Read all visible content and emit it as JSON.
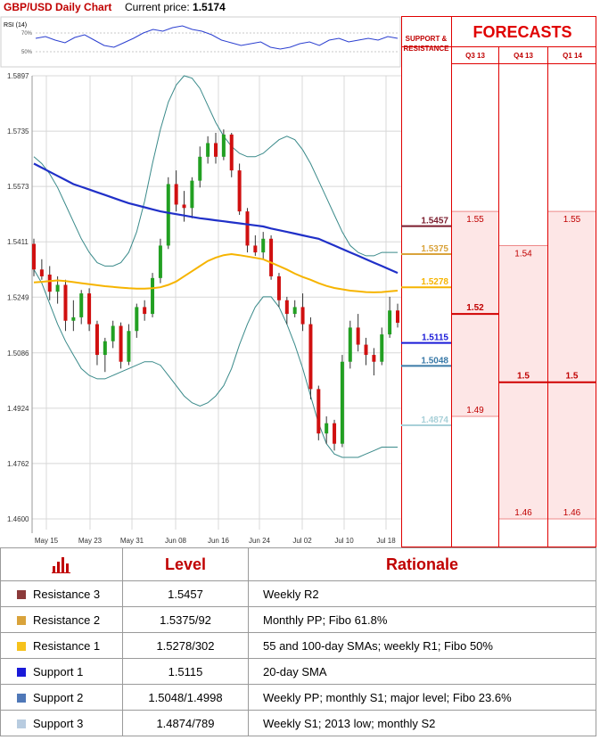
{
  "header": {
    "title": "GBP/USD Daily Chart",
    "price_label": "Current price:",
    "price_value": "1.5174"
  },
  "forecast_panel": {
    "title": "FORECASTS",
    "sr_title_line1": "SUPPORT &",
    "sr_title_line2": "RESISTANCE",
    "quarters": [
      "Q3 13",
      "Q4 13",
      "Q1 14"
    ]
  },
  "chart_data": [
    {
      "type": "line",
      "title": "RSI (14)",
      "y_ticks": [
        "70%",
        "50%"
      ],
      "ylim": [
        30,
        80
      ],
      "series": [
        {
          "values": [
            60,
            62,
            58,
            55,
            61,
            64,
            58,
            52,
            50,
            55,
            60,
            66,
            70,
            68,
            72,
            74,
            70,
            68,
            64,
            58,
            55,
            52,
            54,
            56,
            50,
            48,
            50,
            54,
            56,
            52,
            58,
            60,
            56,
            58,
            60,
            58,
            62,
            60
          ]
        }
      ]
    },
    {
      "type": "candlestick",
      "ylim": [
        1.46,
        1.5897
      ],
      "y_ticks": [
        "1.5897",
        "1.5735",
        "1.5573",
        "1.5411",
        "1.5249",
        "1.5086",
        "1.4924",
        "1.4762",
        "1.4600"
      ],
      "x_ticks": [
        "May 15",
        "May 23",
        "May 31",
        "Jun 08",
        "Jun 16",
        "Jun 24",
        "Jul 02",
        "Jul 10",
        "Jul 18"
      ],
      "colors": {
        "up": "#22a022",
        "down": "#d01010",
        "sma200": "#2030c8",
        "sma": "#f6b400",
        "band": "#3a8a8a"
      },
      "candles": [
        [
          1.5405,
          1.542,
          1.531,
          1.533
        ],
        [
          1.533,
          1.536,
          1.53,
          1.531
        ],
        [
          1.5315,
          1.534,
          1.524,
          1.5265
        ],
        [
          1.5265,
          1.531,
          1.523,
          1.5285
        ],
        [
          1.5285,
          1.53,
          1.515,
          1.518
        ],
        [
          1.518,
          1.524,
          1.515,
          1.519
        ],
        [
          1.519,
          1.527,
          1.517,
          1.526
        ],
        [
          1.526,
          1.5275,
          1.515,
          1.517
        ],
        [
          1.517,
          1.518,
          1.505,
          1.508
        ],
        [
          1.508,
          1.513,
          1.503,
          1.512
        ],
        [
          1.512,
          1.518,
          1.51,
          1.5165
        ],
        [
          1.5165,
          1.5175,
          1.504,
          1.506
        ],
        [
          1.506,
          1.517,
          1.505,
          1.515
        ],
        [
          1.515,
          1.523,
          1.513,
          1.522
        ],
        [
          1.522,
          1.524,
          1.518,
          1.52
        ],
        [
          1.52,
          1.532,
          1.519,
          1.5305
        ],
        [
          1.5305,
          1.542,
          1.529,
          1.54
        ],
        [
          1.54,
          1.56,
          1.539,
          1.558
        ],
        [
          1.558,
          1.562,
          1.55,
          1.552
        ],
        [
          1.552,
          1.556,
          1.547,
          1.551
        ],
        [
          1.551,
          1.56,
          1.548,
          1.559
        ],
        [
          1.559,
          1.569,
          1.557,
          1.566
        ],
        [
          1.566,
          1.572,
          1.564,
          1.57
        ],
        [
          1.57,
          1.573,
          1.564,
          1.566
        ],
        [
          1.566,
          1.574,
          1.565,
          1.5725
        ],
        [
          1.5725,
          1.573,
          1.56,
          1.562
        ],
        [
          1.562,
          1.564,
          1.549,
          1.55
        ],
        [
          1.55,
          1.551,
          1.538,
          1.54
        ],
        [
          1.54,
          1.543,
          1.537,
          1.538
        ],
        [
          1.538,
          1.544,
          1.536,
          1.542
        ],
        [
          1.542,
          1.543,
          1.53,
          1.531
        ],
        [
          1.531,
          1.532,
          1.522,
          1.524
        ],
        [
          1.524,
          1.525,
          1.517,
          1.52
        ],
        [
          1.52,
          1.524,
          1.519,
          1.522
        ],
        [
          1.522,
          1.526,
          1.515,
          1.517
        ],
        [
          1.517,
          1.519,
          1.495,
          1.498
        ],
        [
          1.498,
          1.499,
          1.483,
          1.485
        ],
        [
          1.485,
          1.49,
          1.482,
          1.488
        ],
        [
          1.488,
          1.489,
          1.48,
          1.482
        ],
        [
          1.482,
          1.508,
          1.481,
          1.506
        ],
        [
          1.506,
          1.518,
          1.504,
          1.516
        ],
        [
          1.516,
          1.52,
          1.509,
          1.511
        ],
        [
          1.511,
          1.513,
          1.505,
          1.508
        ],
        [
          1.508,
          1.51,
          1.502,
          1.506
        ],
        [
          1.506,
          1.516,
          1.505,
          1.514
        ],
        [
          1.514,
          1.525,
          1.513,
          1.521
        ],
        [
          1.521,
          1.523,
          1.516,
          1.5174
        ]
      ],
      "sma200": [
        1.564,
        1.5628,
        1.5616,
        1.5604,
        1.5592,
        1.558,
        1.5572,
        1.5564,
        1.5556,
        1.5548,
        1.554,
        1.5532,
        1.5524,
        1.5518,
        1.5512,
        1.5506,
        1.55,
        1.5496,
        1.5492,
        1.5488,
        1.5484,
        1.548,
        1.5477,
        1.5474,
        1.5471,
        1.5468,
        1.5465,
        1.5462,
        1.5459,
        1.5456,
        1.545,
        1.5445,
        1.544,
        1.5435,
        1.543,
        1.5425,
        1.542,
        1.541,
        1.54,
        1.539,
        1.538,
        1.537,
        1.536,
        1.535,
        1.534,
        1.533,
        1.532
      ],
      "sma": [
        1.5292,
        1.5294,
        1.5296,
        1.5298,
        1.5296,
        1.5293,
        1.529,
        1.5287,
        1.5284,
        1.5281,
        1.5279,
        1.5277,
        1.5275,
        1.5274,
        1.5274,
        1.5275,
        1.5278,
        1.5285,
        1.5295,
        1.531,
        1.5325,
        1.534,
        1.5355,
        1.5365,
        1.5372,
        1.5375,
        1.5372,
        1.5368,
        1.5364,
        1.536,
        1.535,
        1.534,
        1.533,
        1.5318,
        1.5308,
        1.53,
        1.529,
        1.5282,
        1.5276,
        1.5272,
        1.5268,
        1.5266,
        1.5264,
        1.5263,
        1.5264,
        1.5266,
        1.5268
      ],
      "upper_band": [
        1.566,
        1.564,
        1.561,
        1.557,
        1.552,
        1.547,
        1.542,
        1.538,
        1.535,
        1.534,
        1.534,
        1.535,
        1.538,
        1.544,
        1.553,
        1.564,
        1.574,
        1.582,
        1.587,
        1.5897,
        1.589,
        1.586,
        1.581,
        1.576,
        1.572,
        1.569,
        1.567,
        1.566,
        1.566,
        1.567,
        1.569,
        1.571,
        1.572,
        1.571,
        1.568,
        1.564,
        1.559,
        1.554,
        1.549,
        1.544,
        1.54,
        1.538,
        1.537,
        1.537,
        1.538,
        1.538,
        1.538
      ],
      "lower_band": [
        1.533,
        1.529,
        1.523,
        1.517,
        1.512,
        1.508,
        1.504,
        1.502,
        1.501,
        1.501,
        1.502,
        1.503,
        1.504,
        1.505,
        1.506,
        1.506,
        1.505,
        1.502,
        1.499,
        1.496,
        1.494,
        1.493,
        1.494,
        1.496,
        1.499,
        1.504,
        1.511,
        1.517,
        1.522,
        1.525,
        1.525,
        1.522,
        1.517,
        1.511,
        1.504,
        1.496,
        1.488,
        1.482,
        1.479,
        1.478,
        1.478,
        1.478,
        1.479,
        1.48,
        1.481,
        1.481,
        1.481
      ],
      "levels": [
        {
          "value": "1.5457",
          "price": 1.5457,
          "color": "#7b1c2d"
        },
        {
          "value": "1.5375",
          "price": 1.5375,
          "color": "#d9a33b"
        },
        {
          "value": "1.5278",
          "price": 1.5278,
          "color": "#f6b400"
        },
        {
          "value": "1.5115",
          "price": 1.5115,
          "color": "#1a1ad8"
        },
        {
          "value": "1.5048",
          "price": 1.5048,
          "color": "#3a7aa8"
        },
        {
          "value": "1.4874",
          "price": 1.4874,
          "color": "#a8d0d8"
        }
      ],
      "forecasts": [
        {
          "quarter": "Q3 13",
          "high_label": "1.55",
          "high": 1.55,
          "mid_label": "1.52",
          "mid": 1.52,
          "low_label": "1.49",
          "low": 1.49
        },
        {
          "quarter": "Q4 13",
          "high_label": "1.54",
          "high": 1.54,
          "mid_label": "1.5",
          "mid": 1.5,
          "low_label": "1.46",
          "low": 1.46
        },
        {
          "quarter": "Q1 14",
          "high_label": "1.55",
          "high": 1.55,
          "mid_label": "1.5",
          "mid": 1.5,
          "low_label": "1.46",
          "low": 1.46
        }
      ]
    }
  ],
  "table": {
    "headers": {
      "level": "Level",
      "rationale": "Rationale"
    },
    "rows": [
      {
        "name": "Resistance 3",
        "color": "#8b3a3a",
        "level": "1.5457",
        "rationale": "Weekly R2"
      },
      {
        "name": "Resistance 2",
        "color": "#d9a33b",
        "level": "1.5375/92",
        "rationale": "Monthly PP; Fibo 61.8%"
      },
      {
        "name": "Resistance 1",
        "color": "#f6c21c",
        "level": "1.5278/302",
        "rationale": "55 and 100-day SMAs; weekly R1; Fibo 50%"
      },
      {
        "name": "Support 1",
        "color": "#1a1ad8",
        "level": "1.5115",
        "rationale": "20-day SMA"
      },
      {
        "name": "Support 2",
        "color": "#4f78b8",
        "level": "1.5048/1.4998",
        "rationale": "Weekly PP; monthly S1; major level; Fibo 23.6%"
      },
      {
        "name": "Support 3",
        "color": "#b8cce0",
        "level": "1.4874/789",
        "rationale": "Weekly S1; 2013 low; monthly S2"
      }
    ]
  }
}
